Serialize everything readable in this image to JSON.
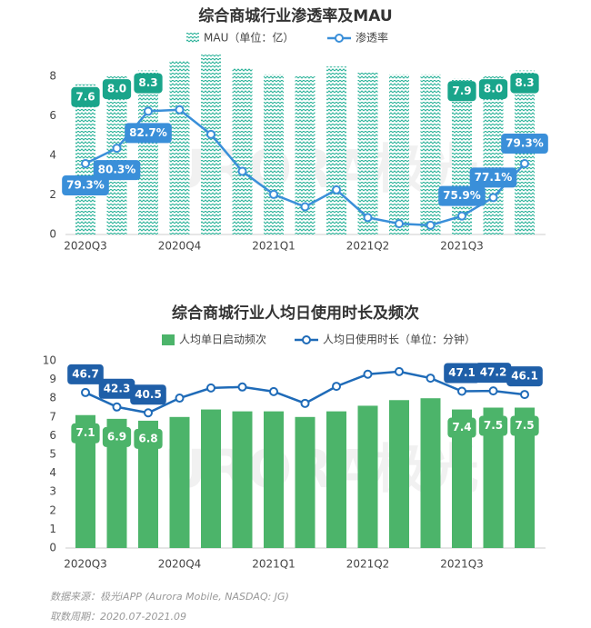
{
  "chart_data": [
    {
      "type": "combo",
      "title": "综合商城行业渗透率及MAU",
      "categories": [
        "2020Q3",
        null,
        null,
        "2020Q4",
        null,
        null,
        "2021Q1",
        null,
        null,
        "2021Q2",
        null,
        null,
        "2021Q3",
        null,
        null
      ],
      "series": [
        {
          "name": "MAU（单位：亿）",
          "type": "bar",
          "color": "#1aa58b",
          "values": [
            7.6,
            8.0,
            8.3,
            8.8,
            9.1,
            8.4,
            8.1,
            8.0,
            8.5,
            8.2,
            8.1,
            8.1,
            7.9,
            8.0,
            8.3
          ],
          "value_labels": [
            "7.6",
            "8.0",
            "8.3",
            null,
            null,
            null,
            null,
            null,
            null,
            null,
            null,
            null,
            "7.9",
            "8.0",
            "8.3"
          ]
        },
        {
          "name": "渗透率",
          "type": "line",
          "axis": "y2",
          "color": "#3a8fd9",
          "values": [
            79.3,
            80.3,
            82.7,
            82.8,
            81.2,
            78.8,
            77.3,
            76.5,
            77.6,
            75.8,
            75.4,
            75.3,
            75.9,
            77.1,
            79.3
          ],
          "value_labels": [
            "79.3%",
            "80.3%",
            "82.7%",
            null,
            null,
            null,
            null,
            null,
            null,
            null,
            null,
            null,
            "75.9%",
            "77.1%",
            "79.3%"
          ]
        }
      ],
      "ylim": [
        0,
        9.2
      ],
      "yticks": [
        0,
        2,
        4,
        6,
        8
      ],
      "y2lim": [
        74.7,
        86.5
      ]
    },
    {
      "type": "combo",
      "title": "综合商城行业人均日使用时长及频次",
      "categories": [
        "2020Q3",
        null,
        null,
        "2020Q4",
        null,
        null,
        "2021Q1",
        null,
        null,
        "2021Q2",
        null,
        null,
        "2021Q3",
        null,
        null
      ],
      "series": [
        {
          "name": "人均单日启动频次",
          "type": "bar",
          "color": "#4cb46a",
          "values": [
            7.1,
            6.9,
            6.8,
            7.0,
            7.4,
            7.3,
            7.3,
            7.0,
            7.3,
            7.6,
            7.9,
            8.0,
            7.4,
            7.5,
            7.5
          ],
          "value_labels": [
            "7.1",
            "6.9",
            "6.8",
            null,
            null,
            null,
            null,
            null,
            null,
            null,
            null,
            null,
            "7.4",
            "7.5",
            "7.5"
          ]
        },
        {
          "name": "人均日使用时长（单位：分钟）",
          "type": "line",
          "axis": "y2",
          "color": "#1f6bb8",
          "values": [
            46.7,
            42.3,
            40.5,
            45.0,
            48.1,
            48.4,
            47.0,
            43.4,
            48.6,
            52.3,
            53.1,
            51.1,
            47.1,
            47.2,
            46.1
          ],
          "value_labels": [
            "46.7",
            "42.3",
            "40.5",
            null,
            null,
            null,
            null,
            null,
            null,
            null,
            null,
            null,
            "47.1",
            "47.2",
            "46.1"
          ]
        }
      ],
      "ylim": [
        0,
        10
      ],
      "yticks": [
        0,
        1,
        2,
        3,
        4,
        5,
        6,
        7,
        8,
        9,
        10
      ],
      "y2lim": [
        -0.8,
        56.4
      ]
    }
  ],
  "watermark": "URORA极光",
  "source": "数据来源：极光iAPP (Aurora Mobile, NASDAQ: JG)",
  "period": "取数周期：2020.07-2021.09"
}
